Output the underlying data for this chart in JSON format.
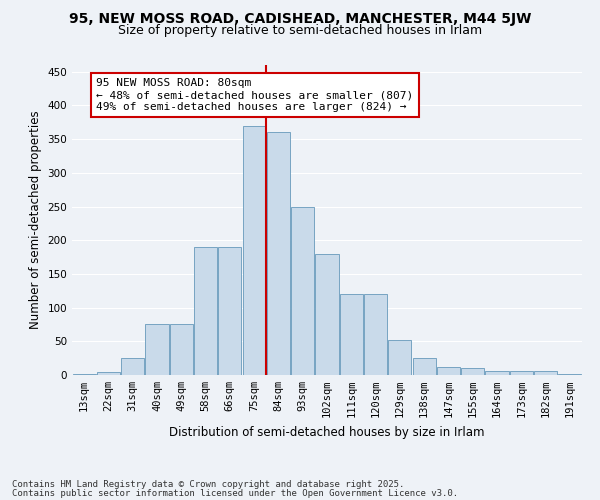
{
  "title_line1": "95, NEW MOSS ROAD, CADISHEAD, MANCHESTER, M44 5JW",
  "title_line2": "Size of property relative to semi-detached houses in Irlam",
  "xlabel": "Distribution of semi-detached houses by size in Irlam",
  "ylabel": "Number of semi-detached properties",
  "annotation_title": "95 NEW MOSS ROAD: 80sqm",
  "annotation_line2": "← 48% of semi-detached houses are smaller (807)",
  "annotation_line3": "49% of semi-detached houses are larger (824) →",
  "footer_line1": "Contains HM Land Registry data © Crown copyright and database right 2025.",
  "footer_line2": "Contains public sector information licensed under the Open Government Licence v3.0.",
  "bin_labels": [
    "13sqm",
    "22sqm",
    "31sqm",
    "40sqm",
    "49sqm",
    "58sqm",
    "66sqm",
    "75sqm",
    "84sqm",
    "93sqm",
    "102sqm",
    "111sqm",
    "120sqm",
    "129sqm",
    "138sqm",
    "147sqm",
    "155sqm",
    "164sqm",
    "173sqm",
    "182sqm",
    "191sqm"
  ],
  "bar_values": [
    2,
    5,
    25,
    75,
    75,
    190,
    190,
    370,
    360,
    250,
    180,
    120,
    120,
    52,
    25,
    12,
    10,
    6,
    6,
    6,
    2
  ],
  "bar_color": "#c9daea",
  "bar_edge_color": "#6699bb",
  "vline_color": "#cc0000",
  "annotation_box_color": "#ffffff",
  "annotation_border_color": "#cc0000",
  "ylim": [
    0,
    460
  ],
  "yticks": [
    0,
    50,
    100,
    150,
    200,
    250,
    300,
    350,
    400,
    450
  ],
  "background_color": "#eef2f7",
  "grid_color": "#ffffff",
  "title_fontsize": 10,
  "subtitle_fontsize": 9,
  "axis_label_fontsize": 8.5,
  "tick_fontsize": 7.5,
  "annotation_fontsize": 8,
  "footer_fontsize": 6.5
}
